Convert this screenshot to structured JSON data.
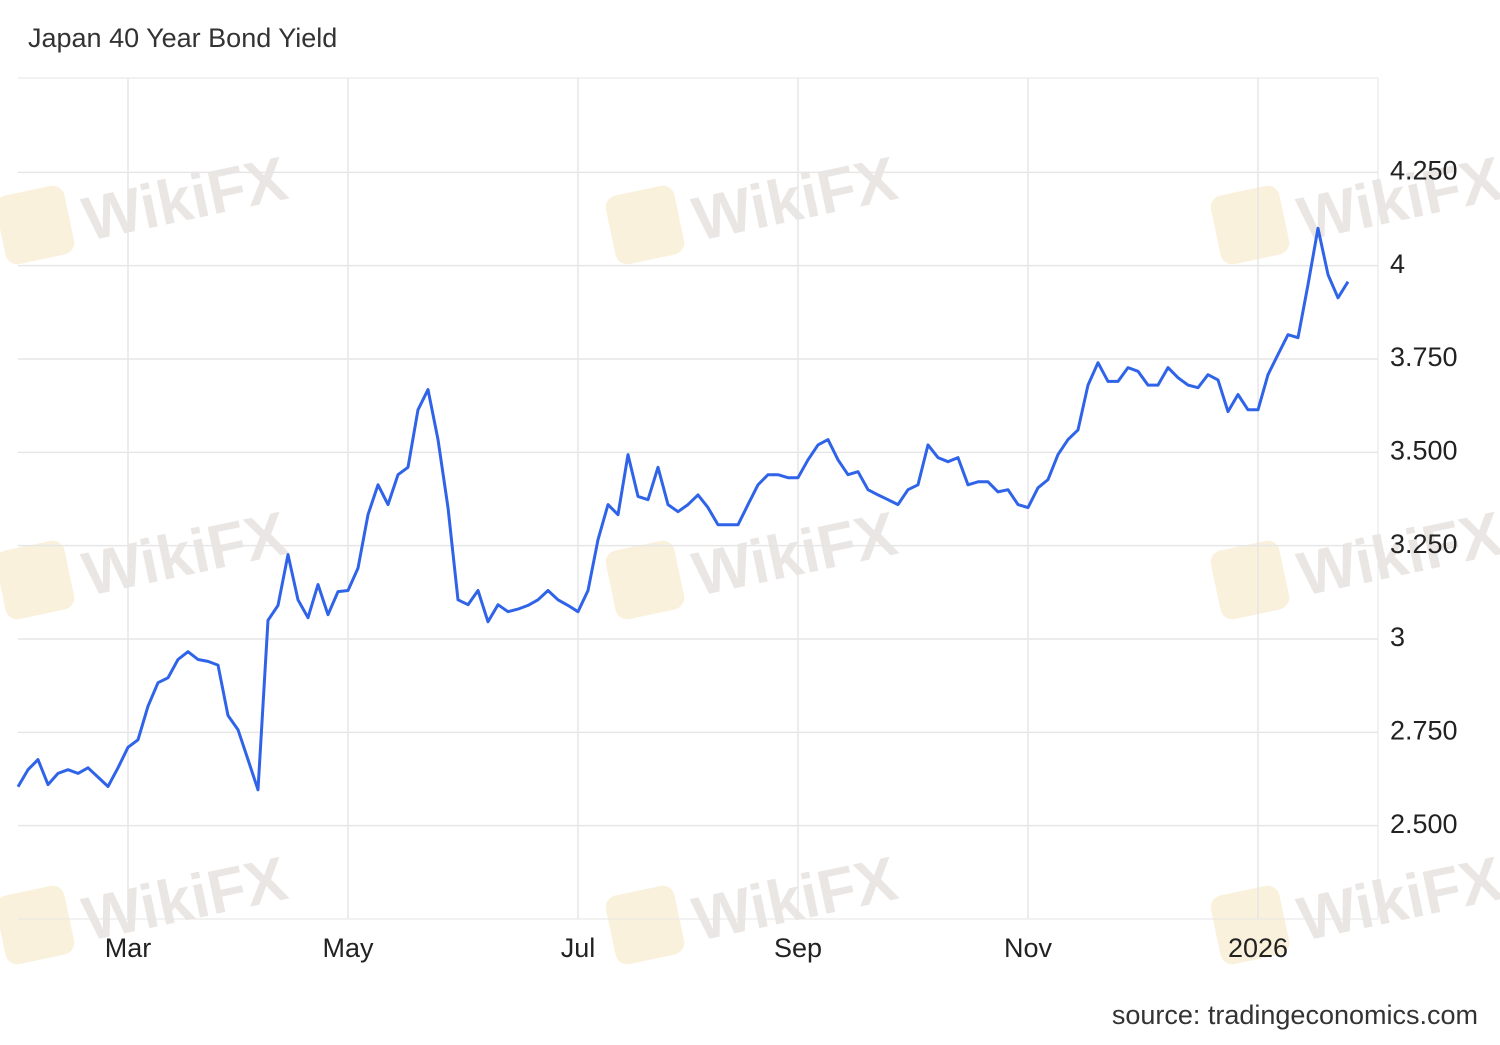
{
  "chart_data": {
    "type": "line",
    "title": "Japan 40 Year Bond Yield",
    "source": "source: tradingeconomics.com",
    "watermark": "WikiFX",
    "categories": [
      null,
      null,
      null,
      null,
      null,
      null,
      null,
      null,
      null,
      null,
      null,
      "Mar",
      null,
      null,
      null,
      null,
      null,
      null,
      null,
      null,
      null,
      null,
      null,
      null,
      null,
      null,
      null,
      null,
      null,
      null,
      null,
      null,
      null,
      "May",
      null,
      null,
      null,
      null,
      null,
      null,
      null,
      null,
      null,
      null,
      null,
      null,
      null,
      null,
      null,
      null,
      null,
      null,
      null,
      null,
      null,
      null,
      "Jul",
      null,
      null,
      null,
      null,
      null,
      null,
      null,
      null,
      null,
      null,
      null,
      null,
      null,
      null,
      null,
      null,
      null,
      null,
      null,
      null,
      null,
      "Sep",
      null,
      null,
      null,
      null,
      null,
      null,
      null,
      null,
      null,
      null,
      null,
      null,
      null,
      null,
      null,
      null,
      null,
      null,
      null,
      null,
      null,
      null,
      "Nov",
      null,
      null,
      null,
      null,
      null,
      null,
      null,
      null,
      null,
      null,
      null,
      null,
      null,
      null,
      null,
      null,
      null,
      null,
      null,
      null,
      null,
      null,
      "2026",
      null,
      null,
      null,
      null,
      null,
      null,
      null,
      null,
      null
    ],
    "series": [
      {
        "name": "Japan 40 Year Bond Yield",
        "color": "#2f63e8",
        "values": [
          2.604,
          2.65,
          2.677,
          2.61,
          2.64,
          2.65,
          2.64,
          2.655,
          2.63,
          2.605,
          2.655,
          2.71,
          2.73,
          2.82,
          2.883,
          2.896,
          2.945,
          2.966,
          2.945,
          2.94,
          2.93,
          2.795,
          2.757,
          2.677,
          2.596,
          3.05,
          3.09,
          3.226,
          3.105,
          3.057,
          3.146,
          3.065,
          3.127,
          3.13,
          3.19,
          3.333,
          3.413,
          3.36,
          3.44,
          3.46,
          3.614,
          3.668,
          3.534,
          3.352,
          3.105,
          3.092,
          3.13,
          3.046,
          3.092,
          3.073,
          3.08,
          3.09,
          3.105,
          3.13,
          3.105,
          3.09,
          3.073,
          3.13,
          3.266,
          3.36,
          3.333,
          3.494,
          3.382,
          3.373,
          3.46,
          3.36,
          3.341,
          3.36,
          3.386,
          3.352,
          3.306,
          3.306,
          3.306,
          3.36,
          3.413,
          3.44,
          3.44,
          3.432,
          3.432,
          3.48,
          3.52,
          3.534,
          3.48,
          3.44,
          3.448,
          3.4,
          3.386,
          3.373,
          3.36,
          3.4,
          3.413,
          3.52,
          3.486,
          3.475,
          3.486,
          3.413,
          3.421,
          3.421,
          3.394,
          3.4,
          3.36,
          3.352,
          3.405,
          3.427,
          3.494,
          3.534,
          3.56,
          3.68,
          3.74,
          3.69,
          3.69,
          3.727,
          3.717,
          3.68,
          3.68,
          3.727,
          3.7,
          3.68,
          3.673,
          3.708,
          3.694,
          3.609,
          3.655,
          3.614,
          3.614,
          3.708,
          3.762,
          3.815,
          3.807,
          3.949,
          4.1,
          3.976,
          3.914,
          3.957
        ]
      }
    ],
    "ylim": [
      2.25,
      4.5
    ],
    "yticks": [
      {
        "value": 2.5,
        "label": "2.500"
      },
      {
        "value": 2.75,
        "label": "2.750"
      },
      3,
      {
        "value": 3.25,
        "label": "3.250"
      },
      {
        "value": 3.5,
        "label": "3.500"
      },
      {
        "value": 3.75,
        "label": "3.750"
      },
      4,
      {
        "value": 4.25,
        "label": "4.250"
      }
    ],
    "grid": true
  }
}
